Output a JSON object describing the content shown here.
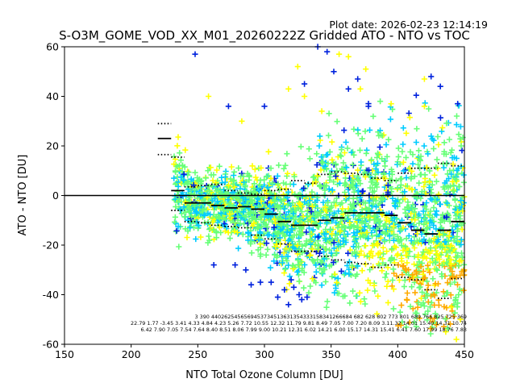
{
  "plot_date": "Plot date: 2026-02-23 12:14:19",
  "chart_data": {
    "type": "scatter",
    "title": "S-O3M_GOME_VOD_XX_M01_20260222Z Gridded ATO - NTO vs TOC",
    "xlabel": "NTO Total Ozone Column [DU]",
    "ylabel": "ATO - NTO [DU]",
    "xlim": [
      150,
      450
    ],
    "ylim": [
      -60,
      60
    ],
    "xticks": [
      150,
      200,
      250,
      300,
      350,
      400,
      450
    ],
    "yticks": [
      -60,
      -40,
      -20,
      0,
      20,
      40,
      60
    ],
    "zero_line": 0,
    "colors": {
      "low": "#0022dd",
      "mid_low": "#00ccff",
      "mid": "#66ff77",
      "mid_high": "#ffff00",
      "high": "#ffaa00",
      "stat": "#000000"
    },
    "bins_x": [
      225,
      235,
      245,
      255,
      265,
      275,
      285,
      295,
      305,
      315,
      325,
      335,
      345,
      355,
      365,
      375,
      385,
      395,
      405,
      415,
      425,
      435,
      445
    ],
    "median": [
      23,
      2,
      -3,
      -3,
      -4,
      -5,
      -4.5,
      -5.5,
      -7.5,
      -10.5,
      -12,
      -12,
      -10,
      -9,
      -7,
      -7,
      -7,
      -8,
      -11,
      -14,
      -15.5,
      -14,
      -10.5
    ],
    "upper_dotted": [
      29,
      15.5,
      3.5,
      4,
      4.5,
      2,
      1,
      0.5,
      2,
      2.5,
      6,
      5,
      8.5,
      9.5,
      9,
      8.5,
      7,
      6,
      9,
      11,
      11,
      13,
      12
    ],
    "lower_dotted": [
      16.5,
      -6,
      -10.5,
      -11,
      -12,
      -12.5,
      -13,
      -16,
      -17.5,
      -19.5,
      -22.5,
      -22.5,
      -24.5,
      -26,
      -27,
      -27.5,
      -29,
      -28,
      -33,
      -34,
      -38,
      -41.5,
      -33.5
    ],
    "stat_rows": [
      "3    390 4402625456569453734513631354333158341266684  682  628  802  773  801  689  766  825  725  369",
      "22.79 1.77 -3.45 3.41 4.33 4.84 4.23 5.26 7.72 10.55 12.32 11.79 9.81 8.49 7.05 7.00 7.20 8.09 3.11.32 14.01 15.40 14.31 10.74",
      "6.42 7.90 7.05 7.54 7.64 8.40 8.51 8.06 7.99 9.00 10.21 12.31 6.02 14.21 6.00 15.17 14.31 15.41 6.41 7.60 17.99 18.76 7.83"
    ]
  }
}
